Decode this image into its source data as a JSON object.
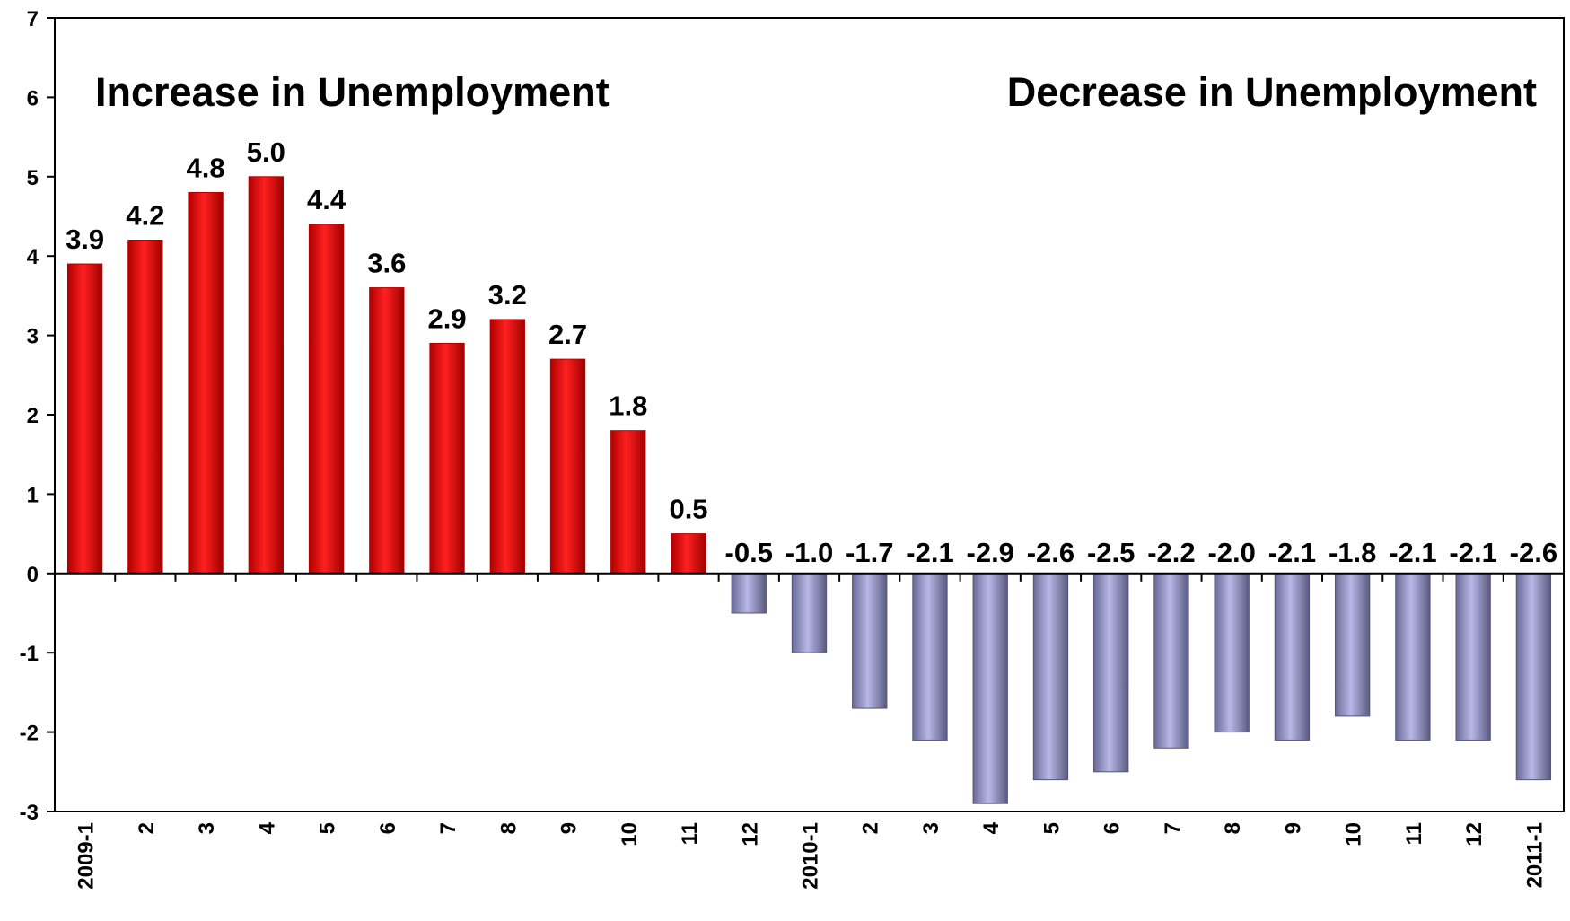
{
  "chart_data": {
    "type": "bar",
    "title": "",
    "xlabel": "",
    "ylabel": "",
    "ylim": [
      -3,
      7
    ],
    "yticks": [
      -3,
      -2,
      -1,
      0,
      1,
      2,
      3,
      4,
      5,
      6,
      7
    ],
    "grid": false,
    "legend": "none",
    "annotations": {
      "left": "Increase in Unemployment",
      "right": "Decrease in Unemployment"
    },
    "categories": [
      "2009-1",
      "2",
      "3",
      "4",
      "5",
      "6",
      "7",
      "8",
      "9",
      "10",
      "11",
      "12",
      "2010-1",
      "2",
      "3",
      "4",
      "5",
      "6",
      "7",
      "8",
      "9",
      "10",
      "11",
      "12",
      "2011-1"
    ],
    "values": [
      3.9,
      4.2,
      4.8,
      5.0,
      4.4,
      3.6,
      2.9,
      3.2,
      2.7,
      1.8,
      0.5,
      -0.5,
      -1.0,
      -1.7,
      -2.1,
      -2.9,
      -2.6,
      -2.5,
      -2.2,
      -2.0,
      -2.1,
      -1.8,
      -2.1,
      -2.1,
      -2.6
    ],
    "data_labels": [
      "3.9",
      "4.2",
      "4.8",
      "5.0",
      "4.4",
      "3.6",
      "2.9",
      "3.2",
      "2.7",
      "1.8",
      "0.5",
      "-0.5",
      "-1.0",
      "-1.7",
      "-2.1",
      "-2.9",
      "-2.6",
      "-2.5",
      "-2.2",
      "-2.0",
      "-2.1",
      "-1.8",
      "-2.1",
      "-2.1",
      "-2.6"
    ],
    "colors": {
      "positive": "#ff0000",
      "positive_dark": "#b80000",
      "negative": "#a0a0d8",
      "negative_dark": "#55557a",
      "axis": "#000000"
    }
  }
}
